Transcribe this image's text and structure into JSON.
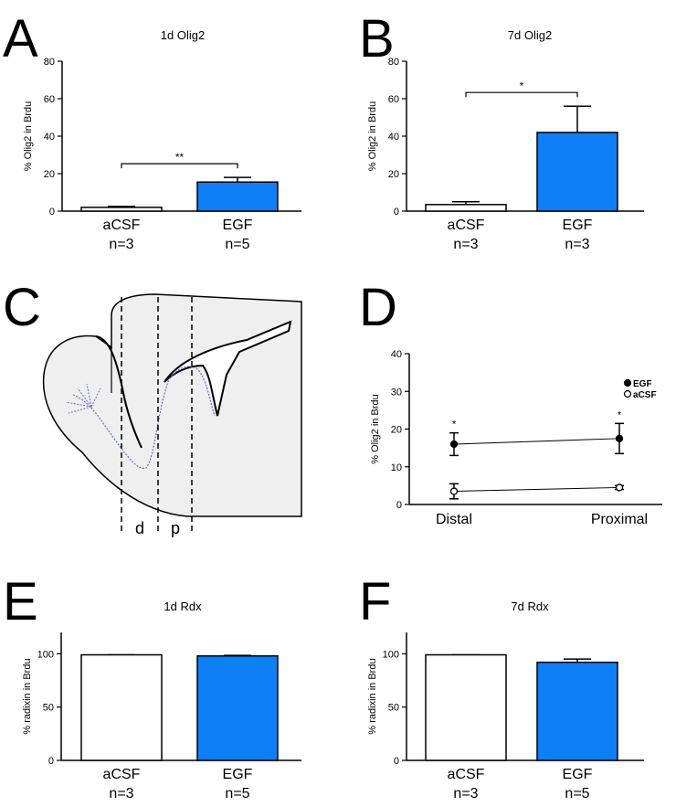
{
  "chart_data": [
    {
      "type": "bar",
      "panel": "A",
      "title": "1d Olig2",
      "y_label": "% Olig2 in Brdu",
      "categories": [
        "aCSF",
        "EGF"
      ],
      "n_labels": [
        "n=3",
        "n=5"
      ],
      "values": [
        2,
        15.5
      ],
      "errors": [
        0.5,
        2.5
      ],
      "colors": [
        "#ffffff",
        "#0f7ff5"
      ],
      "ylim": [
        0,
        80
      ],
      "yticks": [
        0,
        20,
        40,
        60,
        80
      ],
      "significance": "**"
    },
    {
      "type": "bar",
      "panel": "B",
      "title": "7d Olig2",
      "y_label": "% Olig2 in Brdu",
      "categories": [
        "aCSF",
        "EGF"
      ],
      "n_labels": [
        "n=3",
        "n=3"
      ],
      "values": [
        3.5,
        42
      ],
      "errors": [
        1.5,
        14
      ],
      "colors": [
        "#ffffff",
        "#0f7ff5"
      ],
      "ylim": [
        0,
        80
      ],
      "yticks": [
        0,
        20,
        40,
        60,
        80
      ],
      "significance": "*"
    },
    {
      "type": "line",
      "panel": "D",
      "y_label": "% Olig2 in Brdu",
      "categories": [
        "Distal",
        "Proximal"
      ],
      "series": [
        {
          "name": "EGF",
          "color": "#000000",
          "values": [
            16,
            17.5
          ],
          "errors": [
            3,
            4
          ],
          "point_labels": [
            "*",
            "*"
          ]
        },
        {
          "name": "aCSF",
          "color": "#ffffff",
          "values": [
            3.5,
            4.5
          ],
          "errors": [
            2,
            0.5
          ]
        }
      ],
      "ylim": [
        0,
        40
      ],
      "yticks": [
        0,
        10,
        20,
        30,
        40
      ]
    },
    {
      "type": "bar",
      "panel": "E",
      "title": "1d Rdx",
      "y_label": "% radixin in Brdu",
      "categories": [
        "aCSF",
        "EGF"
      ],
      "n_labels": [
        "n=3",
        "n=5"
      ],
      "values": [
        99,
        98
      ],
      "errors": [
        0,
        0.5
      ],
      "colors": [
        "#ffffff",
        "#0f7ff5"
      ],
      "ylim": [
        0,
        120
      ],
      "yticks": [
        0,
        50,
        100
      ]
    },
    {
      "type": "bar",
      "panel": "F",
      "title": "7d Rdx",
      "y_label": "% radixin in Brdu",
      "categories": [
        "aCSF",
        "EGF"
      ],
      "n_labels": [
        "n=3",
        "n=5"
      ],
      "values": [
        99,
        92
      ],
      "errors": [
        0,
        3
      ],
      "colors": [
        "#ffffff",
        "#0f7ff5"
      ],
      "ylim": [
        0,
        120
      ],
      "yticks": [
        0,
        50,
        100
      ]
    }
  ],
  "diagram": {
    "panel": "C",
    "regions": [
      "d",
      "p"
    ]
  }
}
